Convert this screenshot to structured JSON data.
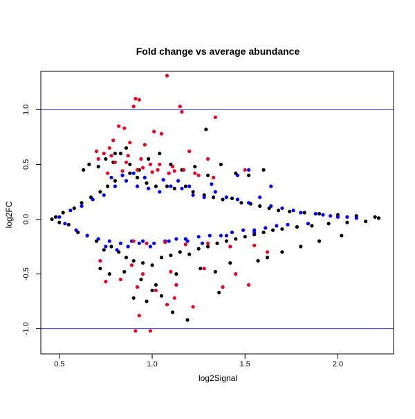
{
  "chart_data": {
    "type": "scatter",
    "title": "Fold change vs average abundance",
    "xlabel": "log2Signal",
    "ylabel": "log2FC",
    "xlim": [
      0.4,
      2.3
    ],
    "ylim": [
      -1.23,
      1.35
    ],
    "xticks": [
      0.5,
      1.0,
      1.5,
      2.0
    ],
    "xtick_labels": [
      "0.5",
      "1.0",
      "1.5",
      "2.0"
    ],
    "yticks": [
      -1.0,
      -0.5,
      0.0,
      0.5,
      1.0
    ],
    "ytick_labels": [
      "-1.0",
      "-0.5",
      "0.0",
      "0.5",
      "1.0"
    ],
    "grid": false,
    "reference_lines": [
      {
        "axis": "y",
        "value": 1.0,
        "color": "#3333cc"
      },
      {
        "axis": "y",
        "value": -1.0,
        "color": "#3333cc"
      }
    ],
    "colors": {
      "black": "#000000",
      "blue": "#0000ff",
      "red": "#ee0022"
    },
    "series": [
      {
        "color": "#000000",
        "x": [
          0.46,
          0.48,
          0.5,
          0.52,
          0.55,
          0.58,
          0.6,
          0.62,
          0.65,
          0.67,
          0.7,
          0.72,
          0.74,
          0.76,
          0.78,
          0.8,
          0.82,
          0.84,
          0.86,
          0.88,
          0.9,
          0.92,
          0.95,
          0.97,
          1.0,
          1.02,
          1.05,
          1.08,
          1.1,
          1.12,
          1.15,
          1.18,
          1.2,
          1.22,
          1.25,
          1.28,
          1.3,
          1.33,
          1.35,
          1.38,
          1.4,
          1.43,
          1.45,
          1.48,
          1.5,
          1.53,
          1.55,
          1.58,
          1.6,
          1.63,
          1.65,
          1.68,
          1.7,
          1.74,
          1.78,
          1.82,
          1.86,
          1.9,
          1.95,
          2.0,
          2.05,
          2.1,
          2.15,
          2.2,
          2.22,
          0.63,
          0.66,
          0.71,
          0.75,
          0.79,
          0.83,
          0.88,
          0.93,
          0.98,
          1.04,
          1.1,
          1.16,
          1.23,
          1.3,
          1.37,
          1.45,
          1.52,
          1.6,
          0.72,
          0.77,
          0.85,
          0.94,
          1.02,
          1.13,
          1.26,
          1.34,
          1.42,
          1.36,
          0.9,
          0.97,
          1.05,
          1.11,
          1.19,
          0.8,
          0.86,
          1.0,
          1.29,
          1.57,
          1.62,
          1.7,
          1.8,
          1.9,
          2.02
        ],
        "y": [
          0.0,
          0.02,
          -0.03,
          0.06,
          -0.05,
          0.1,
          -0.12,
          0.15,
          -0.15,
          0.2,
          -0.2,
          0.25,
          -0.28,
          0.3,
          -0.25,
          0.35,
          -0.3,
          0.4,
          -0.35,
          0.42,
          -0.38,
          0.38,
          -0.4,
          0.33,
          -0.42,
          0.3,
          -0.35,
          0.3,
          -0.33,
          0.28,
          -0.3,
          0.3,
          -0.32,
          0.25,
          -0.27,
          0.22,
          -0.25,
          0.2,
          -0.22,
          0.18,
          -0.2,
          0.19,
          -0.18,
          0.15,
          -0.16,
          0.14,
          -0.14,
          0.12,
          -0.12,
          0.1,
          -0.1,
          0.08,
          -0.09,
          0.07,
          -0.07,
          0.06,
          -0.06,
          0.05,
          -0.04,
          0.04,
          -0.03,
          0.03,
          -0.02,
          0.02,
          0.01,
          0.45,
          0.5,
          0.48,
          0.55,
          0.52,
          0.6,
          0.5,
          0.45,
          0.55,
          0.6,
          0.5,
          0.45,
          0.48,
          0.4,
          0.5,
          0.42,
          0.4,
          0.45,
          -0.45,
          -0.5,
          -0.48,
          -0.55,
          -0.6,
          -0.5,
          -0.45,
          -0.48,
          -0.4,
          -0.67,
          -0.72,
          -0.75,
          -0.7,
          -0.85,
          -0.92,
          0.6,
          0.65,
          -0.65,
          0.82,
          -0.38,
          -0.35,
          -0.3,
          -0.25,
          -0.2,
          -0.15
        ]
      },
      {
        "color": "#0000ff",
        "x": [
          0.5,
          0.53,
          0.56,
          0.59,
          0.62,
          0.65,
          0.68,
          0.71,
          0.74,
          0.77,
          0.8,
          0.83,
          0.86,
          0.89,
          0.92,
          0.95,
          0.98,
          1.01,
          1.04,
          1.07,
          1.1,
          1.13,
          1.16,
          1.19,
          1.22,
          1.25,
          1.28,
          1.31,
          1.34,
          1.37,
          1.4,
          1.43,
          1.46,
          1.49,
          1.52,
          1.55,
          1.58,
          1.61,
          1.64,
          1.67,
          1.7,
          1.73,
          1.76,
          1.8,
          1.84,
          1.88,
          1.92,
          1.96,
          2.0,
          2.05,
          2.1,
          0.78,
          0.84,
          0.9,
          0.96,
          1.06,
          1.14,
          1.2,
          1.32,
          1.46,
          1.52,
          1.64,
          0.75,
          0.81,
          0.87,
          0.93,
          0.99,
          1.09,
          1.18,
          1.27,
          1.4,
          1.55
        ],
        "y": [
          0.02,
          -0.04,
          0.08,
          -0.1,
          0.12,
          -0.15,
          0.18,
          -0.18,
          0.22,
          -0.2,
          0.3,
          -0.22,
          0.35,
          -0.2,
          0.3,
          -0.2,
          0.28,
          -0.22,
          0.25,
          -0.2,
          0.3,
          -0.18,
          0.28,
          -0.2,
          0.22,
          -0.16,
          0.2,
          -0.15,
          0.25,
          -0.15,
          0.2,
          -0.12,
          0.18,
          -0.1,
          0.15,
          -0.1,
          0.2,
          -0.08,
          0.12,
          -0.06,
          0.1,
          -0.05,
          0.08,
          0.06,
          -0.04,
          0.05,
          0.04,
          0.03,
          0.02,
          0.02,
          0.01,
          0.38,
          0.4,
          0.42,
          0.38,
          0.36,
          0.35,
          0.3,
          0.32,
          0.4,
          0.45,
          0.3,
          -0.25,
          -0.28,
          -0.25,
          -0.22,
          -0.25,
          -0.2,
          -0.18,
          -0.22,
          -0.15,
          -0.12
        ]
      },
      {
        "color": "#ee0022",
        "x": [
          1.08,
          0.91,
          0.93,
          0.9,
          1.15,
          1.16,
          1.34,
          0.82,
          0.85,
          1.01,
          1.05,
          0.79,
          0.77,
          0.88,
          0.96,
          1.2,
          1.3,
          0.71,
          0.74,
          0.8,
          0.87,
          0.94,
          0.99,
          1.04,
          1.11,
          1.17,
          1.23,
          0.76,
          0.84,
          0.92,
          1.0,
          1.09,
          0.7,
          0.78,
          0.86,
          0.95,
          1.03,
          1.12,
          1.25,
          1.33,
          1.5,
          0.9,
          0.97,
          1.07,
          1.18,
          1.3,
          1.42,
          1.55,
          1.62,
          0.75,
          0.83,
          0.95,
          1.1,
          1.28,
          0.72,
          0.89,
          0.92,
          1.13,
          1.02,
          1.38,
          1.45,
          1.52,
          0.93,
          0.91,
          0.99,
          1.22,
          1.08,
          1.12
        ],
        "y": [
          1.31,
          1.1,
          1.09,
          1.03,
          1.03,
          0.98,
          0.93,
          0.85,
          0.83,
          0.8,
          0.78,
          0.72,
          0.65,
          0.7,
          0.68,
          0.62,
          0.55,
          0.55,
          0.6,
          0.52,
          0.58,
          0.55,
          0.5,
          0.5,
          0.48,
          0.45,
          0.42,
          0.42,
          0.44,
          0.45,
          0.43,
          0.42,
          0.62,
          0.58,
          0.52,
          0.47,
          0.45,
          0.44,
          0.4,
          0.38,
          0.45,
          -0.2,
          -0.22,
          -0.21,
          -0.23,
          -0.22,
          -0.25,
          -0.24,
          -0.3,
          -0.57,
          -0.55,
          -0.5,
          -0.48,
          -0.45,
          -0.38,
          -0.42,
          -0.62,
          -0.6,
          -0.65,
          -0.62,
          -0.5,
          -0.6,
          -0.88,
          -1.02,
          -1.02,
          -0.8,
          -0.78,
          -0.72
        ]
      }
    ]
  }
}
